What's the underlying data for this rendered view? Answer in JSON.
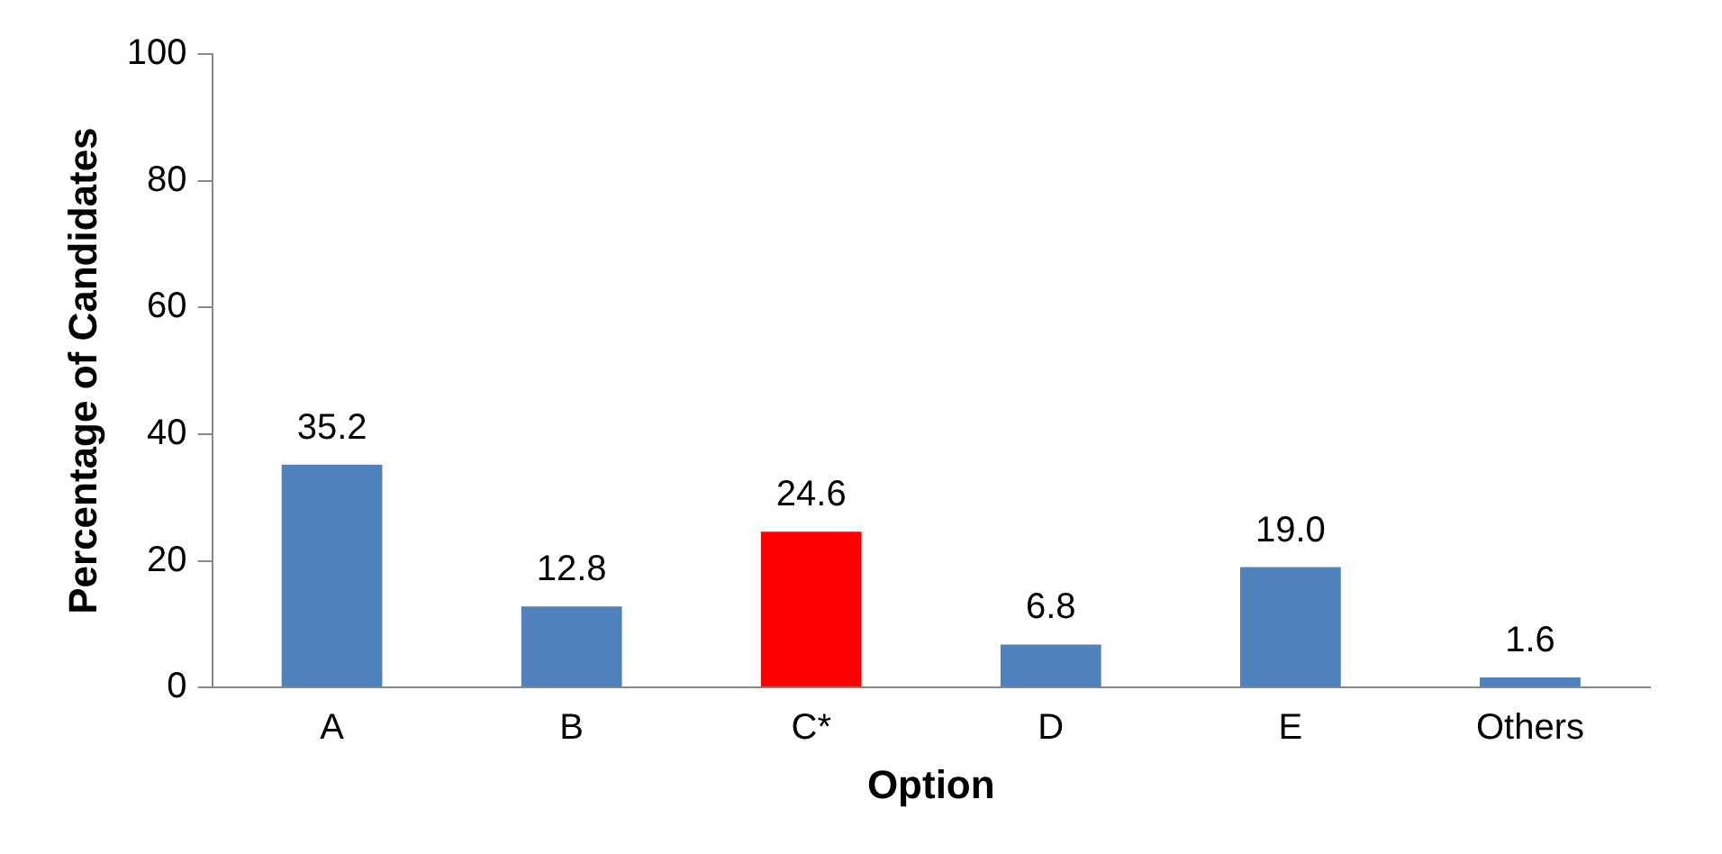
{
  "chart_data": {
    "type": "bar",
    "xlabel": "Option",
    "ylabel": "Percentage of Candidates",
    "categories": [
      "A",
      "B",
      "C*",
      "D",
      "E",
      "Others"
    ],
    "values": [
      35.2,
      12.8,
      24.6,
      6.8,
      19.0,
      1.6
    ],
    "colors": [
      "#4f81bd",
      "#4f81bd",
      "#ff0000",
      "#4f81bd",
      "#4f81bd",
      "#4f81bd"
    ],
    "value_labels": [
      "35.2",
      "12.8",
      "24.6",
      "6.8",
      "19.0",
      "1.6"
    ],
    "ylim": [
      0,
      100
    ],
    "yticks": [
      0,
      20,
      40,
      60,
      80,
      100
    ],
    "grid": false,
    "legend": false
  }
}
